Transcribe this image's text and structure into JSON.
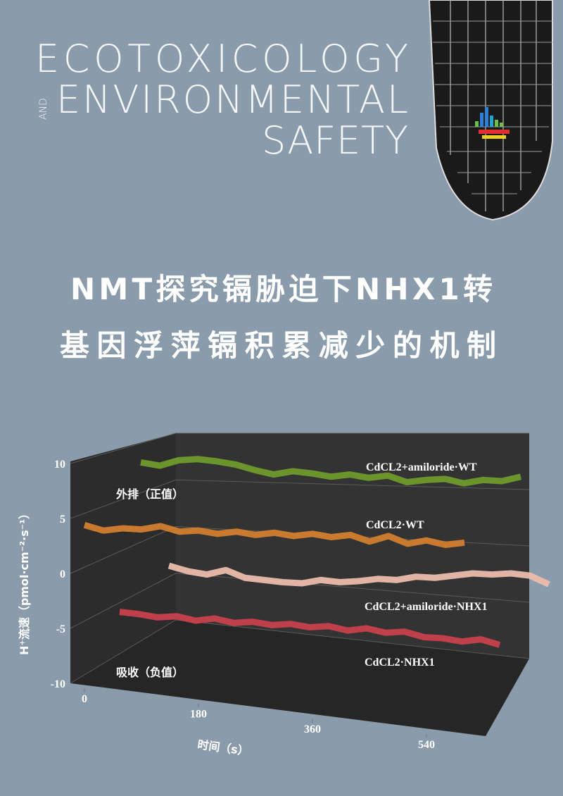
{
  "header": {
    "journal": [
      "ECOTOXICOLOGY",
      "AND",
      "ENVIRONMENTAL",
      "SAFETY"
    ]
  },
  "headline": [
    "NMT探究镉胁迫下NHX1转",
    "基因浮萍镉积累减少的机制"
  ],
  "chart_data": {
    "type": "line",
    "y_label": "H⁺流速（pmol·cm⁻²·s⁻¹）",
    "x_label": "时间（s）",
    "annotations": [
      "外排（正值）",
      "吸收（负值）"
    ],
    "x": [
      0,
      30,
      60,
      90,
      120,
      150,
      180,
      210,
      240,
      270,
      300,
      330,
      360,
      390,
      420,
      450,
      480,
      510,
      540,
      570,
      600
    ],
    "series": [
      {
        "name": "CdCL2+amiloride·WT",
        "color": "#6f9a2c",
        "values": [
          10.1,
          9.8,
          10.3,
          10.4,
          10.2,
          9.9,
          9.4,
          9.0,
          9.3,
          9.1,
          8.8,
          9.0,
          8.7,
          8.9,
          8.3,
          8.5,
          8.6,
          8.2,
          8.5,
          8.4,
          8.8
        ]
      },
      {
        "name": "CdCL2·WT",
        "color": "#d27e2e",
        "values": [
          4.4,
          3.9,
          4.1,
          4.0,
          4.3,
          3.8,
          3.9,
          3.6,
          3.8,
          3.5,
          3.7,
          3.4,
          3.6,
          3.3,
          3.5,
          2.9,
          3.4,
          2.7,
          3.0,
          2.6,
          2.8
        ]
      },
      {
        "name": "CdCL2+amiloride·NHX1",
        "color": "#ecbcac",
        "values": [
          0.7,
          0.2,
          -0.1,
          0.3,
          -0.4,
          -0.6,
          -0.8,
          -0.9,
          -0.6,
          -0.8,
          -0.7,
          -0.5,
          -0.6,
          -0.3,
          -0.4,
          -0.2,
          0.0,
          -0.1,
          0.0,
          -0.2,
          -1.0
        ]
      },
      {
        "name": "CdCL2·NHX1",
        "color": "#c7404c",
        "values": [
          -3.5,
          -3.7,
          -4.0,
          -3.9,
          -4.3,
          -4.1,
          -4.5,
          -4.4,
          -4.7,
          -4.6,
          -4.9,
          -4.8,
          -5.2,
          -5.0,
          -5.4,
          -5.3,
          -5.8,
          -5.9,
          -6.2,
          -6.0,
          -6.5
        ]
      }
    ],
    "xlim": [
      0,
      600
    ],
    "xticks": [
      0,
      180,
      360,
      540
    ],
    "ylim": [
      -10,
      10
    ],
    "yticks": [
      -10,
      -5,
      0,
      5,
      10
    ],
    "grid": true
  }
}
